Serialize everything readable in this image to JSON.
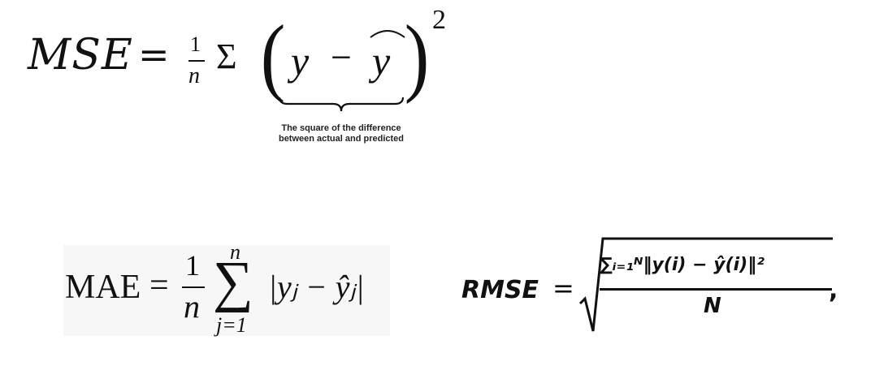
{
  "mse": {
    "lhs": "MSE",
    "eq": "=",
    "frac_num": "1",
    "frac_den": "n",
    "sigma": "Σ",
    "lparen": "(",
    "y": "y",
    "minus": "−",
    "yhat": "y",
    "rparen": ")",
    "exponent": "2",
    "note": "The square of the difference between actual and predicted"
  },
  "mae": {
    "lhs": "MAE",
    "eq": "=",
    "frac_num": "1",
    "frac_den": "n",
    "sum_upper": "n",
    "sum_symbol": "∑",
    "sum_lower": "j=1",
    "body": "|yⱼ − ŷⱼ|"
  },
  "rmse": {
    "lhs": "RMSE",
    "eq": "=",
    "numerator": "∑ᵢ₌₁ᴺ‖y(i) − ŷ(i)‖²",
    "denominator": "N",
    "comma": ","
  }
}
